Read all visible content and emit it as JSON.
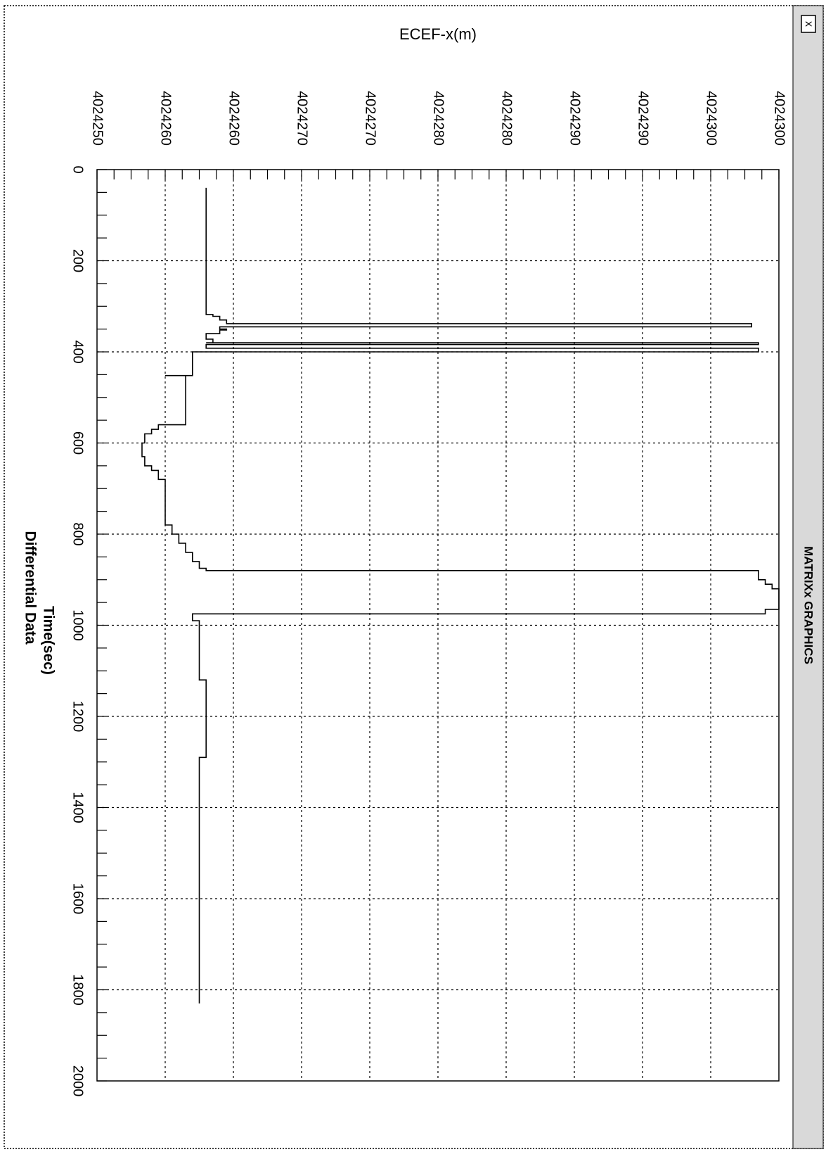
{
  "window": {
    "sidebar_title": "MATRIXx GRAPHICS",
    "close_glyph": "x"
  },
  "chart_data": {
    "type": "line",
    "title": "ECEF-x(m)",
    "xlabel": "Time(sec)",
    "subtitle": "Differential  Data",
    "ylabel": "",
    "xlim": [
      0,
      2000
    ],
    "ylim": [
      4024250,
      4024300
    ],
    "x_ticks": [
      0,
      200,
      400,
      600,
      800,
      1000,
      1200,
      1400,
      1600,
      1800,
      2000
    ],
    "y_tick_values": [
      4024250,
      4024255,
      4024260,
      4024265,
      4024270,
      4024275,
      4024280,
      4024285,
      4024290,
      4024295,
      4024300
    ],
    "y_tick_labels": [
      "4024250",
      "4024260",
      "4024260",
      "4024270",
      "4024270",
      "4024280",
      "4024280",
      "4024290",
      "4024290",
      "4024300",
      "4024300"
    ],
    "grid": true,
    "orientation": "rotated 90 degrees clockwise",
    "series": [
      {
        "color": "#000000",
        "x": [
          40,
          300,
          318,
          322,
          330,
          338,
          338,
          345,
          345,
          350,
          352,
          360,
          372,
          380,
          380,
          384,
          384,
          392,
          392,
          400,
          448,
          452,
          452,
          460,
          520,
          560,
          560,
          570,
          580,
          600,
          630,
          650,
          660,
          680,
          700,
          760,
          780,
          800,
          820,
          840,
          860,
          875,
          880,
          880,
          900,
          910,
          920,
          930,
          960,
          965,
          975,
          990,
          1000,
          1100,
          1120,
          1200,
          1280,
          1290,
          1400,
          1500,
          1600,
          1700,
          1800,
          1830
        ],
        "y": [
          4024258,
          4024258,
          4024258.5,
          4024259,
          4024259.5,
          4024260,
          4024298,
          4024298,
          4024259,
          4024259.5,
          4024259,
          4024258,
          4024258.5,
          4024258,
          4024298.5,
          4024298.5,
          4024258,
          4024258.5,
          4024298.5,
          4024257,
          4024257,
          4024255,
          4024256.5,
          4024256.5,
          4024256.5,
          4024256.5,
          4024254.5,
          4024254,
          4024253.5,
          4024253.3,
          4024253.5,
          4024254,
          4024254.5,
          4024255,
          4024255,
          4024255,
          4024255.5,
          4024256,
          4024256.5,
          4024257,
          4024257.5,
          4024258,
          4024258.5,
          4024298.5,
          4024299,
          4024299.5,
          4024300,
          4024300,
          4024300,
          4024299,
          4024257,
          4024257.5,
          4024257.5,
          4024257.5,
          4024258,
          4024258,
          4024258,
          4024257.5,
          4024257.5,
          4024257.5,
          4024257.5,
          4024257.5,
          4024257.5,
          4024257.5
        ]
      }
    ]
  }
}
